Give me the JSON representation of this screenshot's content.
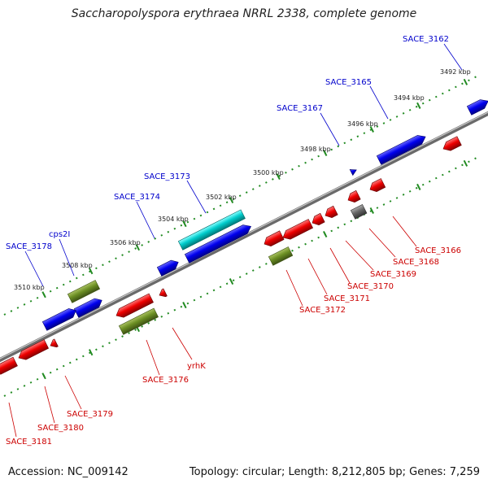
{
  "title": "Saccharopolyspora erythraea NRRL 2338, complete genome",
  "footer": {
    "accession": "Accession: NC_009142",
    "topology": "Topology: circular; Length: 8,212,805 bp; Genes: 7,259"
  },
  "colors": {
    "forward_gene": "#0000cc",
    "reverse_gene": "#dd0000",
    "forward_label": "#0000cc",
    "reverse_label": "#cc0000",
    "rrna": "#00bbbb",
    "olive": "#6b8e23",
    "grey": "#555555",
    "ruler": "#228b22",
    "backbone": "#808080"
  },
  "kbp_labels": [
    "3492 kbp",
    "3494 kbp",
    "3496 kbp",
    "3498 kbp",
    "3500 kbp",
    "3502 kbp",
    "3504 kbp",
    "3506 kbp",
    "3508 kbp",
    "3510 kbp"
  ],
  "forward_gene_labels": [
    "SACE_3162",
    "SACE_3165",
    "SACE_3167",
    "SACE_3173",
    "SACE_3174",
    "cps2I",
    "SACE_3178"
  ],
  "reverse_gene_labels": [
    "SACE_3166",
    "SACE_3168",
    "SACE_3169",
    "SACE_3170",
    "SACE_3171",
    "SACE_3172",
    "yrhK",
    "SACE_3176",
    "SACE_3179",
    "SACE_3180",
    "SACE_3181"
  ]
}
